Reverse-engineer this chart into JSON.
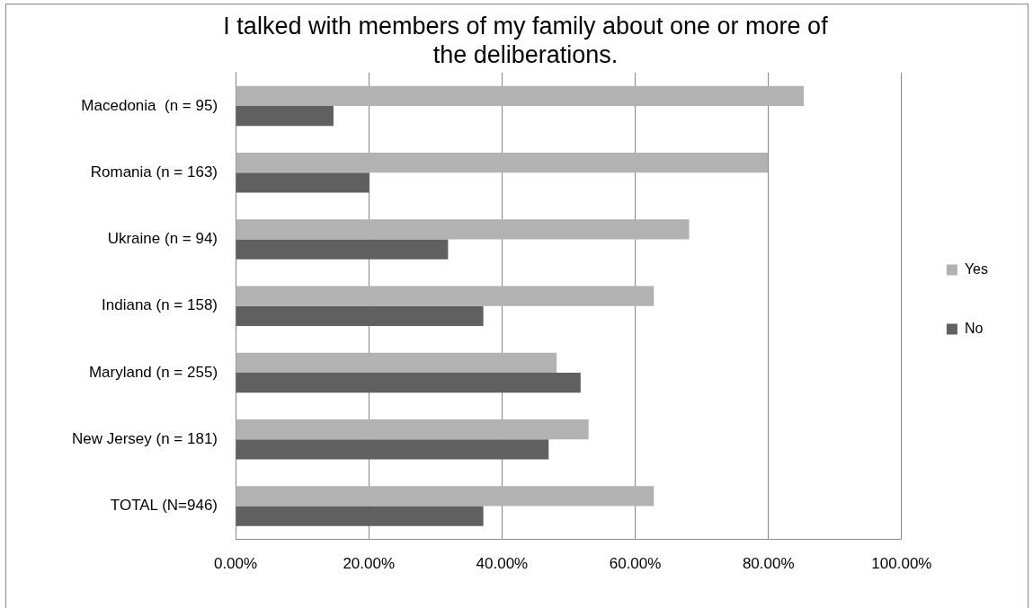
{
  "chart_data": {
    "type": "bar",
    "orientation": "horizontal",
    "title": "I talked with members of my family about one or more of the deliberations.",
    "categories": [
      "Macedonia  (n = 95)",
      "Romania (n = 163)",
      "Ukraine (n = 94)",
      "Indiana (n = 158)",
      "Maryland (n = 255)",
      "New Jersey (n = 181)",
      "TOTAL (N=946)"
    ],
    "series": [
      {
        "name": "Yes",
        "color": "#b2b2b2",
        "values": [
          85.3,
          79.9,
          68.1,
          62.8,
          48.2,
          53.0,
          62.8
        ]
      },
      {
        "name": "No",
        "color": "#606060",
        "values": [
          14.7,
          20.1,
          31.9,
          37.2,
          51.8,
          47.0,
          37.2
        ]
      }
    ],
    "xlim": [
      0,
      100
    ],
    "xticks": [
      {
        "value": 0,
        "label": "0.00%"
      },
      {
        "value": 20,
        "label": "20.00%"
      },
      {
        "value": 40,
        "label": "40.00%"
      },
      {
        "value": 60,
        "label": "60.00%"
      },
      {
        "value": 80,
        "label": "80.00%"
      },
      {
        "value": 100,
        "label": "100.00%"
      }
    ],
    "grid": "x",
    "legend": "right"
  }
}
